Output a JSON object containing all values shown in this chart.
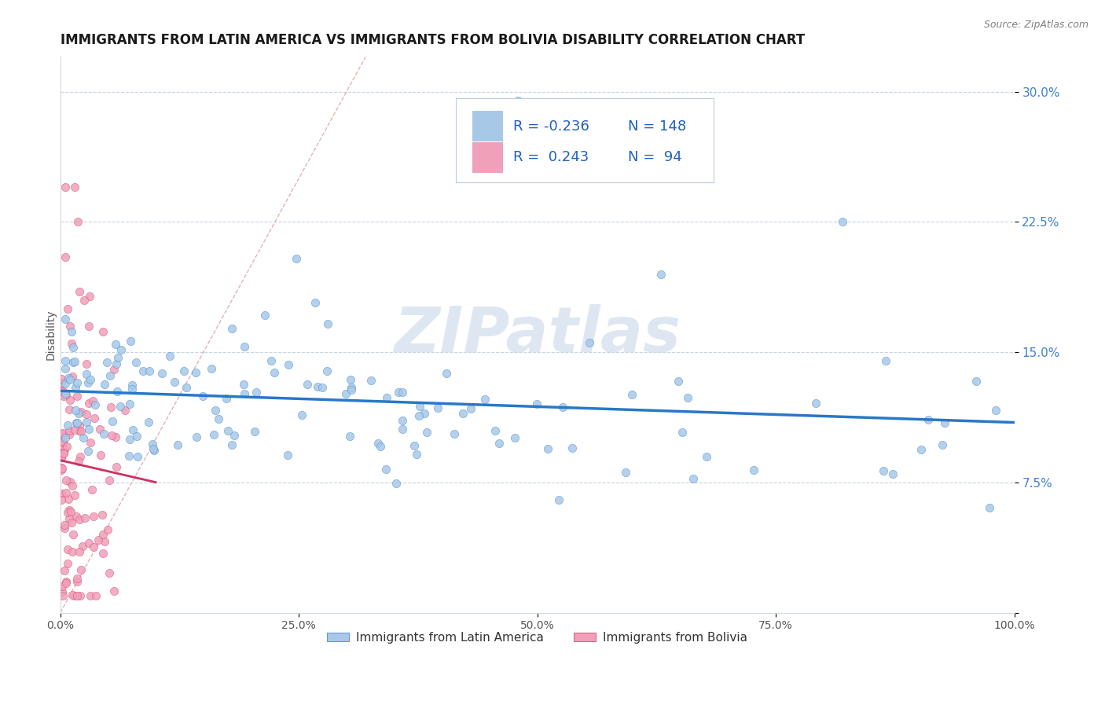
{
  "title": "IMMIGRANTS FROM LATIN AMERICA VS IMMIGRANTS FROM BOLIVIA DISABILITY CORRELATION CHART",
  "source": "Source: ZipAtlas.com",
  "ylabel": "Disability",
  "watermark": "ZIPatlas",
  "series": [
    {
      "name": "Immigrants from Latin America",
      "color": "#a8c8e8",
      "line_color": "#2878c8",
      "R": -0.236,
      "N": 148
    },
    {
      "name": "Immigrants from Bolivia",
      "color": "#f0a0b8",
      "line_color": "#d03060",
      "R": 0.243,
      "N": 94
    }
  ],
  "xlim": [
    0.0,
    1.0
  ],
  "ylim": [
    0.0,
    0.32
  ],
  "xticks": [
    0.0,
    0.25,
    0.5,
    0.75,
    1.0
  ],
  "xtick_labels": [
    "0.0%",
    "25.0%",
    "50.0%",
    "75.0%",
    "100.0%"
  ],
  "yticks": [
    0.0,
    0.075,
    0.15,
    0.225,
    0.3
  ],
  "ytick_labels": [
    "",
    "7.5%",
    "15.0%",
    "22.5%",
    "30.0%"
  ],
  "legend_R_color": "#2060c0",
  "legend_N_color": "#2060c0",
  "background_color": "#ffffff",
  "grid_color": "#c8d4e0",
  "watermark_color": "#c8d8e8",
  "title_fontsize": 12,
  "axis_label_fontsize": 10,
  "tick_fontsize": 10,
  "legend_fontsize": 13,
  "yaxis_color": "#4080d0"
}
